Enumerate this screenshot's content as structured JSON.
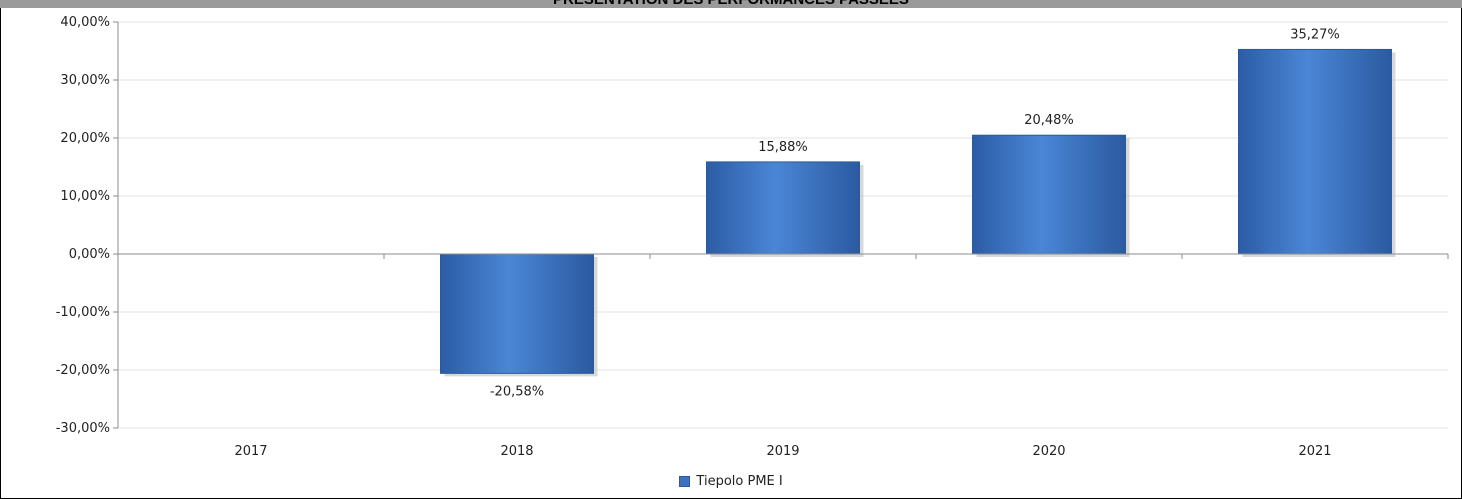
{
  "chart_data": {
    "type": "bar",
    "title": "PRESENTATION DES PERFORMANCES PASSEES",
    "categories": [
      "2017",
      "2018",
      "2019",
      "2020",
      "2021"
    ],
    "series": [
      {
        "name": "Tiepolo PME I",
        "values": [
          null,
          -20.58,
          15.88,
          20.48,
          35.27
        ]
      }
    ],
    "data_labels": [
      "",
      "-20,58%",
      "15,88%",
      "20,48%",
      "35,27%"
    ],
    "y_ticks": [
      "40,00%",
      "30,00%",
      "20,00%",
      "10,00%",
      "0,00%",
      "-10,00%",
      "-20,00%",
      "-30,00%"
    ],
    "ylim": [
      -30,
      40
    ],
    "grid": true,
    "legend_position": "bottom",
    "colors": {
      "bar": "#3d72c2",
      "bar_edge": "#2a5a9e",
      "grid": "#e3e3e3",
      "axis": "#8c8c8c"
    }
  }
}
